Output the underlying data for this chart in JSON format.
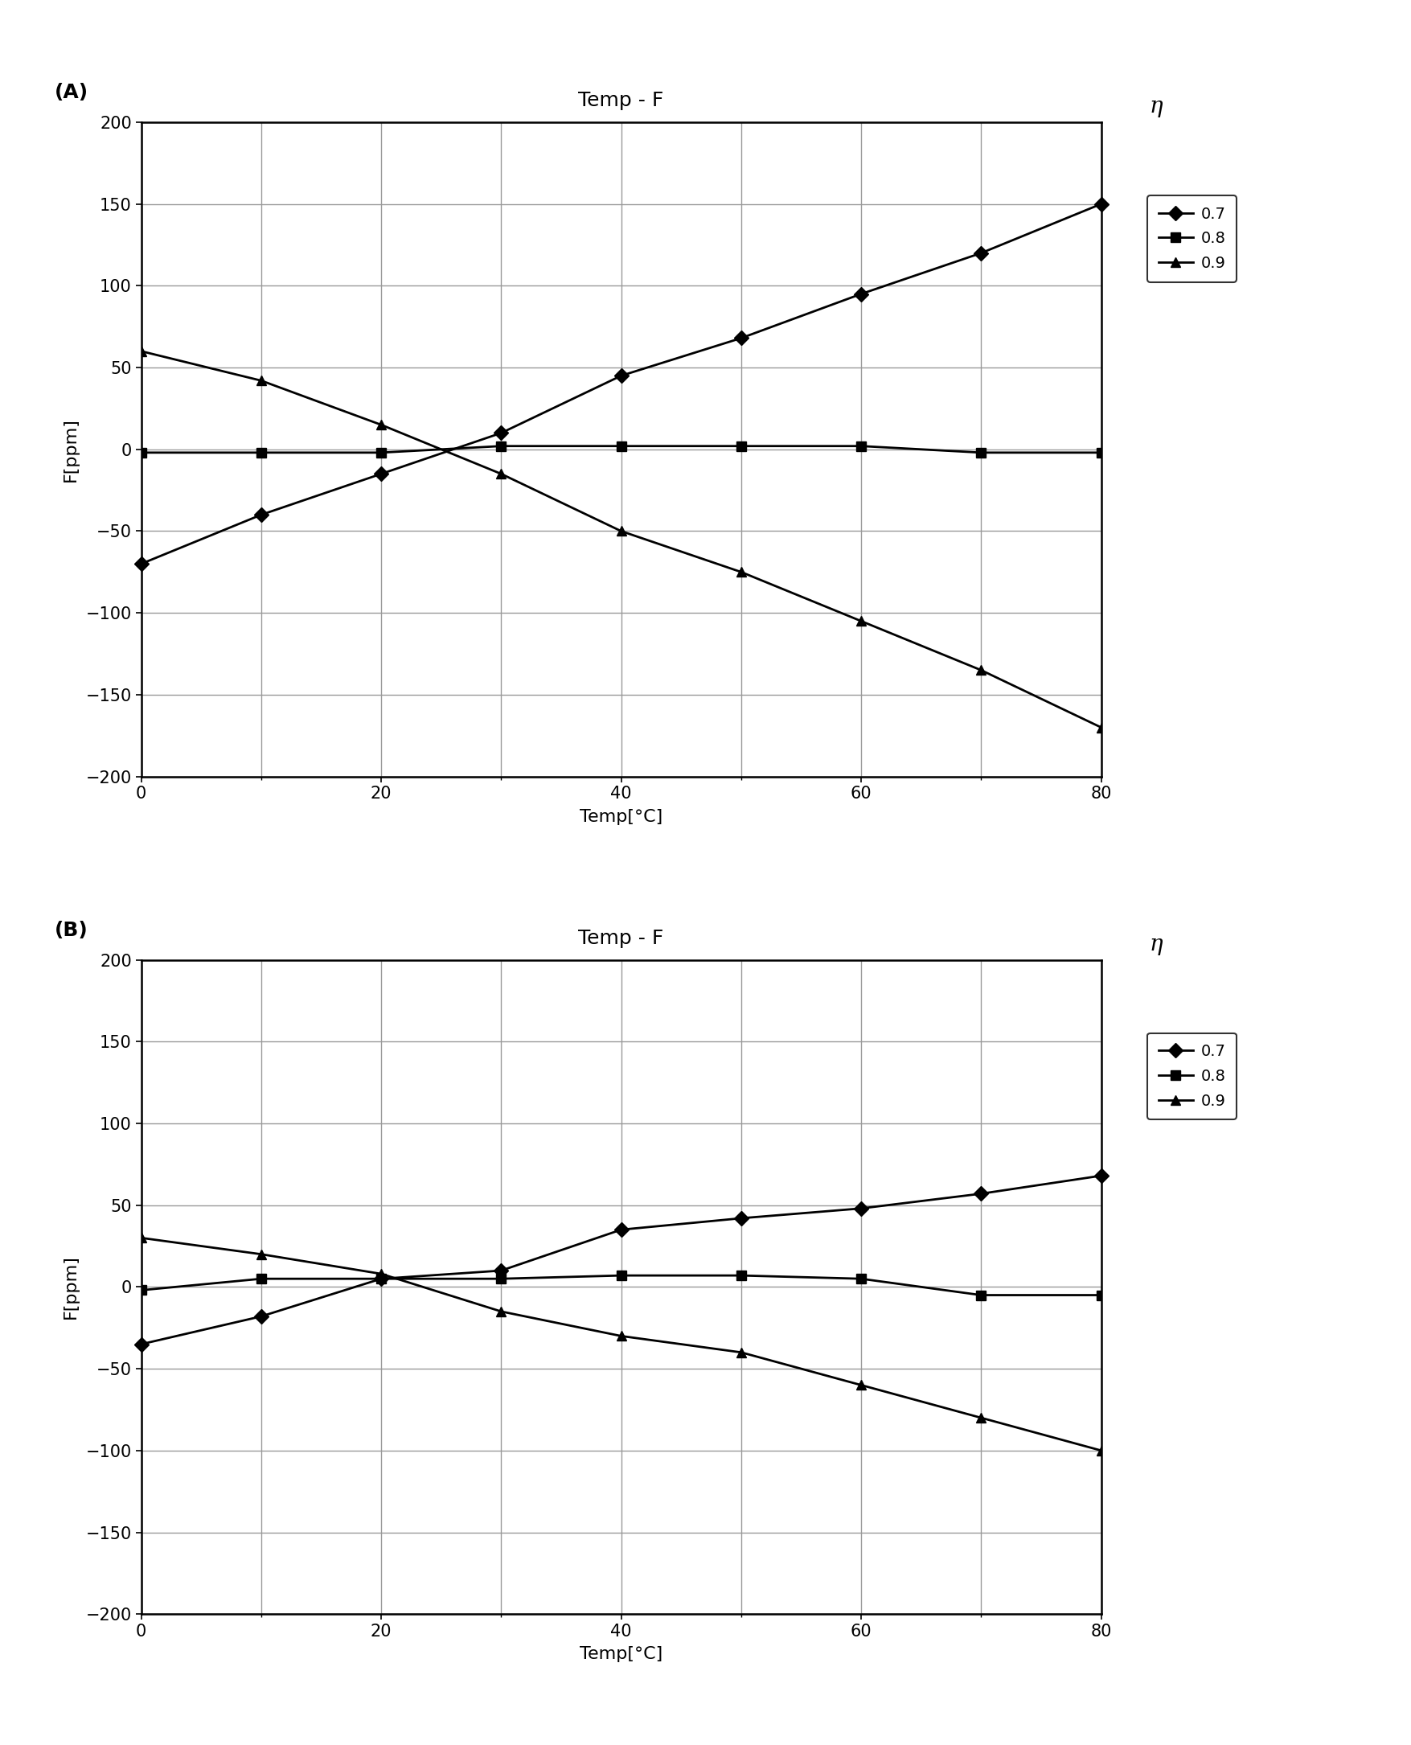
{
  "title": "Temp - F",
  "xlabel": "Temp[°C]",
  "ylabel": "F[ppm]",
  "x": [
    0,
    10,
    20,
    30,
    40,
    50,
    60,
    70,
    80
  ],
  "panel_A": {
    "label": "(A)",
    "eta07": [
      -70,
      -40,
      -15,
      10,
      45,
      68,
      95,
      120,
      150
    ],
    "eta08": [
      -2,
      -2,
      -2,
      2,
      2,
      2,
      2,
      -2,
      -2
    ],
    "eta09": [
      60,
      42,
      15,
      -15,
      -50,
      -75,
      -105,
      -135,
      -170
    ]
  },
  "panel_B": {
    "label": "(B)",
    "eta07": [
      -35,
      -18,
      5,
      10,
      35,
      42,
      48,
      57,
      68
    ],
    "eta08": [
      -2,
      5,
      5,
      5,
      7,
      7,
      5,
      -5,
      -5
    ],
    "eta09": [
      30,
      20,
      8,
      -15,
      -30,
      -40,
      -60,
      -80,
      -100
    ]
  },
  "legend_label": "η",
  "legend_entries": [
    "0.7",
    "0.8",
    "0.9"
  ],
  "ylim": [
    -200,
    200
  ],
  "yticks": [
    -200,
    -150,
    -100,
    -50,
    0,
    50,
    100,
    150,
    200
  ],
  "xlim": [
    0,
    80
  ],
  "xticks": [
    0,
    20,
    40,
    60,
    80
  ],
  "xminorticks": [
    10,
    30,
    50,
    70
  ],
  "line_color": "#000000",
  "marker_diamond": "D",
  "marker_square": "s",
  "marker_triangle": "^",
  "marker_size": 9,
  "linewidth": 2.0,
  "grid_major_color": "#999999",
  "grid_minor_color": "#cccccc",
  "bg_color": "#ffffff",
  "title_fontsize": 18,
  "label_fontsize": 16,
  "tick_fontsize": 15,
  "legend_fontsize": 14,
  "panel_label_fontsize": 18
}
